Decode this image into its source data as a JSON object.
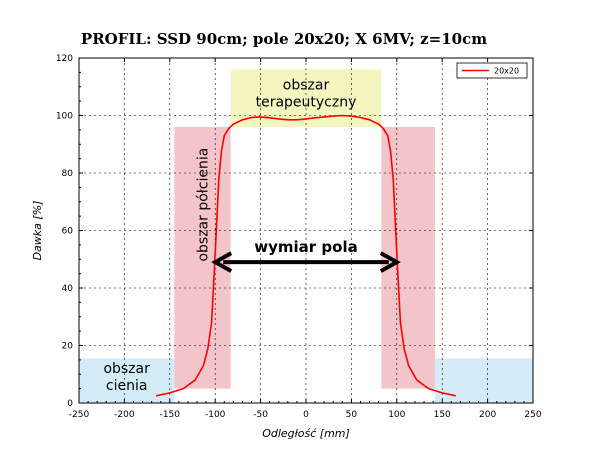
{
  "chart_data": {
    "type": "line",
    "title": "PROFIL: SSD 90cm; pole 20x20; X 6MV; z=10cm",
    "xlabel": "Odległość [mm]",
    "ylabel": "Dawka [%]",
    "xlim": [
      -250,
      250
    ],
    "ylim": [
      0,
      120
    ],
    "xticks": [
      -250,
      -200,
      -150,
      -100,
      -50,
      0,
      50,
      100,
      150,
      200,
      250
    ],
    "yticks": [
      0,
      20,
      40,
      60,
      80,
      100,
      120
    ],
    "grid": "dashed",
    "legend_position": "top-right",
    "series": [
      {
        "name": "20x20",
        "color": "#ff0000",
        "x": [
          -165,
          -150,
          -135,
          -122,
          -113,
          -108,
          -104,
          -102,
          -100,
          -98,
          -96,
          -93,
          -90,
          -85,
          -80,
          -70,
          -60,
          -50,
          -40,
          -30,
          -20,
          -10,
          0,
          10,
          20,
          30,
          40,
          50,
          60,
          70,
          80,
          85,
          90,
          93,
          96,
          98,
          100,
          102,
          104,
          108,
          113,
          122,
          135,
          150,
          165
        ],
        "values": [
          2.5,
          3.5,
          5,
          8,
          13,
          19,
          28,
          40,
          52,
          65,
          78,
          88,
          93,
          95.5,
          97,
          98.5,
          99.3,
          99.5,
          99.2,
          98.8,
          98.5,
          98.5,
          98.8,
          99.2,
          99.5,
          99.8,
          100,
          99.8,
          99.3,
          98.5,
          97,
          95.5,
          93,
          88,
          78,
          65,
          52,
          40,
          28,
          19,
          13,
          8,
          5,
          3.5,
          2.5
        ]
      }
    ],
    "regions": [
      {
        "label": "obszar terapeutyczny",
        "x": [
          -83,
          83
        ],
        "y": [
          96,
          116
        ],
        "color": "#f5f5c0"
      },
      {
        "label": "obszar półcienia",
        "x": [
          -145,
          -83
        ],
        "y": [
          5,
          96
        ],
        "color": "#f4c4cb"
      },
      {
        "label": "",
        "x": [
          83,
          142
        ],
        "y": [
          5,
          96
        ],
        "color": "#f4c4cb"
      },
      {
        "label": "obszar cienia",
        "x": [
          -250,
          -145
        ],
        "y": [
          0,
          15.5
        ],
        "color": "#d4ecf8"
      },
      {
        "label": "",
        "x": [
          142,
          250
        ],
        "y": [
          0,
          15.5
        ],
        "color": "#d4ecf8"
      }
    ],
    "annotation": {
      "text": "wymiar pola",
      "x": [
        -100,
        100
      ],
      "y": 49
    }
  }
}
